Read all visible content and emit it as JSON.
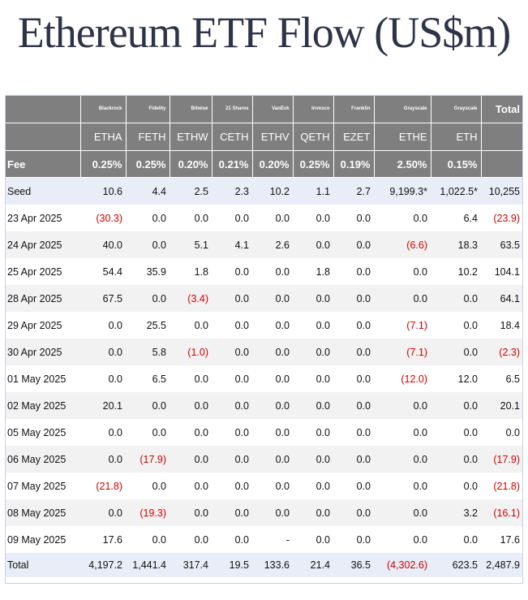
{
  "chart_data": {
    "type": "table",
    "title": "Ethereum ETF Flow (US$m)",
    "fee_label": "Fee",
    "columns": [
      {
        "issuer": "Blackrock",
        "ticker": "ETHA",
        "fee": "0.25%"
      },
      {
        "issuer": "Fidelity",
        "ticker": "FETH",
        "fee": "0.25%"
      },
      {
        "issuer": "Bitwise",
        "ticker": "ETHW",
        "fee": "0.20%"
      },
      {
        "issuer": "21 Shares",
        "ticker": "CETH",
        "fee": "0.21%"
      },
      {
        "issuer": "VanEck",
        "ticker": "ETHV",
        "fee": "0.20%"
      },
      {
        "issuer": "Invesco",
        "ticker": "QETH",
        "fee": "0.25%"
      },
      {
        "issuer": "Franklin",
        "ticker": "EZET",
        "fee": "0.19%"
      },
      {
        "issuer": "Grayscale",
        "ticker": "ETHE",
        "fee": "2.50%"
      },
      {
        "issuer": "Grayscale",
        "ticker": "ETH",
        "fee": "0.15%"
      }
    ],
    "total_label": "Total",
    "rows": [
      {
        "label": "Seed",
        "values": [
          "10.6",
          "4.4",
          "2.5",
          "2.3",
          "10.2",
          "1.1",
          "2.7",
          "9,199.3*",
          "1,022.5*"
        ],
        "total": "10,255"
      },
      {
        "label": "23 Apr 2025",
        "values": [
          "(30.3)",
          "0.0",
          "0.0",
          "0.0",
          "0.0",
          "0.0",
          "0.0",
          "0.0",
          "6.4"
        ],
        "total": "(23.9)"
      },
      {
        "label": "24 Apr 2025",
        "values": [
          "40.0",
          "0.0",
          "5.1",
          "4.1",
          "2.6",
          "0.0",
          "0.0",
          "(6.6)",
          "18.3"
        ],
        "total": "63.5"
      },
      {
        "label": "25 Apr 2025",
        "values": [
          "54.4",
          "35.9",
          "1.8",
          "0.0",
          "0.0",
          "1.8",
          "0.0",
          "0.0",
          "10.2"
        ],
        "total": "104.1"
      },
      {
        "label": "28 Apr 2025",
        "values": [
          "67.5",
          "0.0",
          "(3.4)",
          "0.0",
          "0.0",
          "0.0",
          "0.0",
          "0.0",
          "0.0"
        ],
        "total": "64.1"
      },
      {
        "label": "29 Apr 2025",
        "values": [
          "0.0",
          "25.5",
          "0.0",
          "0.0",
          "0.0",
          "0.0",
          "0.0",
          "(7.1)",
          "0.0"
        ],
        "total": "18.4"
      },
      {
        "label": "30 Apr 2025",
        "values": [
          "0.0",
          "5.8",
          "(1.0)",
          "0.0",
          "0.0",
          "0.0",
          "0.0",
          "(7.1)",
          "0.0"
        ],
        "total": "(2.3)"
      },
      {
        "label": "01 May 2025",
        "values": [
          "0.0",
          "6.5",
          "0.0",
          "0.0",
          "0.0",
          "0.0",
          "0.0",
          "(12.0)",
          "12.0"
        ],
        "total": "6.5"
      },
      {
        "label": "02 May 2025",
        "values": [
          "20.1",
          "0.0",
          "0.0",
          "0.0",
          "0.0",
          "0.0",
          "0.0",
          "0.0",
          "0.0"
        ],
        "total": "20.1"
      },
      {
        "label": "05 May 2025",
        "values": [
          "0.0",
          "0.0",
          "0.0",
          "0.0",
          "0.0",
          "0.0",
          "0.0",
          "0.0",
          "0.0"
        ],
        "total": "0.0"
      },
      {
        "label": "06 May 2025",
        "values": [
          "0.0",
          "(17.9)",
          "0.0",
          "0.0",
          "0.0",
          "0.0",
          "0.0",
          "0.0",
          "0.0"
        ],
        "total": "(17.9)"
      },
      {
        "label": "07 May 2025",
        "values": [
          "(21.8)",
          "0.0",
          "0.0",
          "0.0",
          "0.0",
          "0.0",
          "0.0",
          "0.0",
          "0.0"
        ],
        "total": "(21.8)"
      },
      {
        "label": "08 May 2025",
        "values": [
          "0.0",
          "(19.3)",
          "0.0",
          "0.0",
          "0.0",
          "0.0",
          "0.0",
          "0.0",
          "3.2"
        ],
        "total": "(16.1)"
      },
      {
        "label": "09 May 2025",
        "values": [
          "17.6",
          "0.0",
          "0.0",
          "0.0",
          "-",
          "0.0",
          "0.0",
          "0.0",
          "0.0"
        ],
        "total": "17.6"
      }
    ],
    "total_row": {
      "label": "Total",
      "values": [
        "4,197.2",
        "1,441.4",
        "317.4",
        "19.5",
        "133.6",
        "21.4",
        "36.5",
        "(4,302.6)",
        "623.5"
      ],
      "total": "2,487.9"
    },
    "colors": {
      "header_bg": "#7f7f7f",
      "negative": "#d40000",
      "title": "#2e3447",
      "highlight_row": "#e8edf7",
      "shaded_row": "#f2f2f2"
    }
  }
}
